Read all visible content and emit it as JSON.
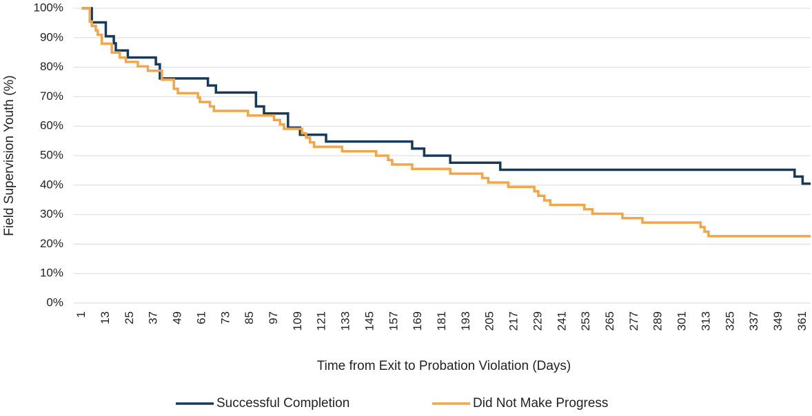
{
  "chart_data": {
    "type": "line",
    "y_axis_label": "Field Supervision Youth (%)",
    "x_axis_label": "Time from Exit to Probation Violation (Days)",
    "xlim": [
      -3,
      365
    ],
    "xticks": [
      1,
      13,
      25,
      37,
      49,
      61,
      73,
      85,
      97,
      109,
      121,
      133,
      145,
      157,
      169,
      181,
      193,
      205,
      217,
      229,
      241,
      253,
      265,
      277,
      289,
      301,
      313,
      325,
      337,
      349,
      361
    ],
    "ylim": [
      0,
      100
    ],
    "yticks": [
      {
        "value": 0,
        "label": "0%"
      },
      {
        "value": 10,
        "label": "10%"
      },
      {
        "value": 20,
        "label": "20%"
      },
      {
        "value": 30,
        "label": "30%"
      },
      {
        "value": 40,
        "label": "40%"
      },
      {
        "value": 50,
        "label": "50%"
      },
      {
        "value": 60,
        "label": "60%"
      },
      {
        "value": 70,
        "label": "70%"
      },
      {
        "value": 80,
        "label": "80%"
      },
      {
        "value": 90,
        "label": "90%"
      },
      {
        "value": 100,
        "label": "100%"
      }
    ],
    "grid": true,
    "legend": "bottom",
    "series": [
      {
        "name": "Successful Completion",
        "color": "#173a5a",
        "x": [
          1,
          6,
          6,
          13,
          13,
          17,
          17,
          18,
          18,
          24,
          24,
          38,
          38,
          40,
          40,
          64,
          64,
          68,
          68,
          88,
          88,
          92,
          92,
          104,
          104,
          110,
          110,
          123,
          123,
          166,
          166,
          172,
          172,
          185,
          185,
          210,
          210,
          357,
          357,
          361,
          361,
          365
        ],
        "values": [
          100,
          100,
          95.2,
          95.2,
          90.5,
          90.5,
          88.1,
          88.1,
          85.7,
          85.7,
          83.3,
          83.3,
          81,
          81,
          76.2,
          76.2,
          73.8,
          73.8,
          71.4,
          71.4,
          66.7,
          66.7,
          64.3,
          64.3,
          59.5,
          59.5,
          57.1,
          57.1,
          54.8,
          54.8,
          52.4,
          52.4,
          50,
          50,
          47.6,
          47.6,
          45.2,
          45.2,
          42.9,
          42.9,
          40.5,
          40.5
        ]
      },
      {
        "name": "Did Not Make Progress",
        "color": "#f2a649",
        "x": [
          1,
          5,
          5,
          6,
          6,
          8,
          8,
          9,
          9,
          11,
          11,
          16,
          16,
          20,
          20,
          23,
          23,
          29,
          29,
          34,
          34,
          41,
          41,
          47,
          47,
          49,
          49,
          59,
          59,
          60,
          60,
          65,
          65,
          67,
          67,
          84,
          84,
          97,
          97,
          100,
          100,
          102,
          102,
          111,
          111,
          113,
          113,
          115,
          115,
          117,
          117,
          131,
          131,
          148,
          148,
          154,
          154,
          156,
          156,
          166,
          166,
          185,
          185,
          201,
          201,
          204,
          204,
          214,
          214,
          227,
          227,
          229,
          229,
          232,
          232,
          235,
          235,
          252,
          252,
          256,
          256,
          271,
          271,
          281,
          281,
          310,
          310,
          312,
          312,
          314,
          314,
          365
        ],
        "values": [
          100,
          100,
          95.5,
          95.5,
          94,
          94,
          92.5,
          92.5,
          91,
          91,
          88,
          88,
          85,
          85,
          83.3,
          83.3,
          81.8,
          81.8,
          80.3,
          80.3,
          78.8,
          78.8,
          75.8,
          75.8,
          72.7,
          72.7,
          71.2,
          71.2,
          69.7,
          69.7,
          68.2,
          68.2,
          66.7,
          66.7,
          65.2,
          65.2,
          63.6,
          63.6,
          62.1,
          62.1,
          60.6,
          60.6,
          59.1,
          59.1,
          57.6,
          57.6,
          56.1,
          56.1,
          54.5,
          54.5,
          53,
          53,
          51.5,
          51.5,
          50,
          50,
          48.5,
          48.5,
          47,
          47,
          45.5,
          45.5,
          43.9,
          43.9,
          42.4,
          42.4,
          40.9,
          40.9,
          39.4,
          39.4,
          37.9,
          37.9,
          36.4,
          36.4,
          34.8,
          34.8,
          33.3,
          33.3,
          31.8,
          31.8,
          30.3,
          30.3,
          28.8,
          28.8,
          27.3,
          27.3,
          25.8,
          25.8,
          24.2,
          24.2,
          22.7,
          22.7
        ]
      }
    ]
  }
}
